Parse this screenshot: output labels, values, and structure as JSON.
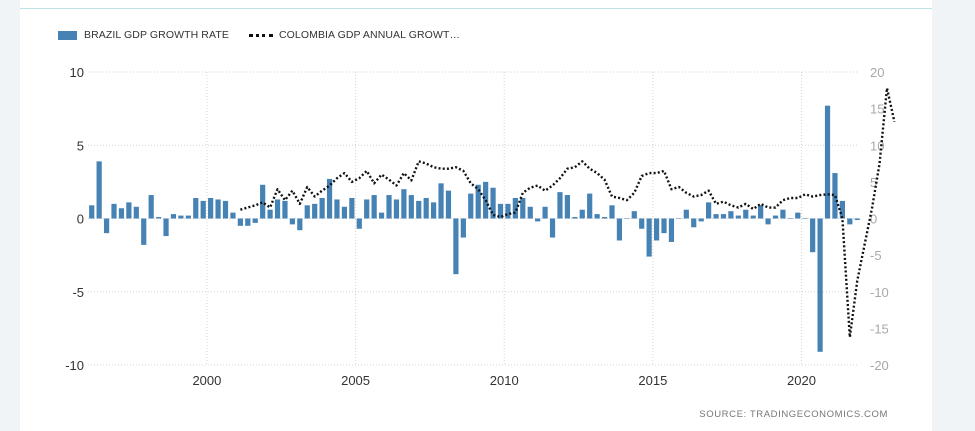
{
  "legend": {
    "brazil": "BRAZIL GDP GROWTH RATE",
    "colombia": "COLOMBIA GDP ANNUAL GROWT…"
  },
  "source": "SOURCE:  TRADINGECONOMICS.COM",
  "chart_data": {
    "type": "bar",
    "x_range": [
      1996.0,
      2021.9
    ],
    "xticks": [
      2000,
      2005,
      2010,
      2015,
      2020
    ],
    "grid": true,
    "legend_position": "top-left",
    "left_axis": {
      "ylim": [
        -10,
        10
      ],
      "ticks": [
        10,
        5,
        0,
        -5,
        -10
      ]
    },
    "right_axis": {
      "ylim": [
        -20,
        20
      ],
      "ticks": [
        20,
        15,
        10,
        5,
        0,
        -5,
        -10,
        -15,
        -20
      ]
    },
    "colors": {
      "brazil": "#4682b4",
      "colombia": "#111111"
    },
    "series": [
      {
        "name": "BRAZIL GDP GROWTH RATE",
        "type": "bar",
        "axis": "left",
        "start": 1996.25,
        "step": 0.25,
        "values": [
          0.9,
          3.9,
          -1.0,
          1.0,
          0.7,
          1.1,
          0.8,
          -1.8,
          1.6,
          0.1,
          -1.2,
          0.3,
          0.2,
          0.2,
          1.4,
          1.2,
          1.4,
          1.3,
          1.2,
          0.4,
          -0.5,
          -0.5,
          -0.3,
          2.3,
          0.6,
          1.3,
          1.2,
          -0.4,
          -0.8,
          0.9,
          1.0,
          1.4,
          2.7,
          1.3,
          0.8,
          1.4,
          -0.7,
          1.3,
          1.6,
          0.4,
          1.6,
          1.3,
          2.0,
          1.6,
          1.2,
          1.4,
          1.1,
          2.4,
          1.9,
          -3.8,
          -1.3,
          1.7,
          2.3,
          2.5,
          2.1,
          1.0,
          1.0,
          1.4,
          1.4,
          0.8,
          -0.2,
          0.8,
          -1.3,
          1.8,
          1.6,
          0.1,
          0.6,
          1.7,
          0.3,
          0.1,
          0.9,
          -1.5,
          0.0,
          0.5,
          -0.7,
          -2.6,
          -1.5,
          -1.0,
          -1.6,
          0.0,
          0.6,
          -0.6,
          -0.2,
          1.1,
          0.3,
          0.3,
          0.5,
          0.2,
          0.6,
          0.2,
          0.9,
          -0.4,
          0.2,
          0.6,
          0.0,
          0.4,
          0.0,
          -2.3,
          -9.1,
          7.7,
          3.1,
          1.2,
          -0.4,
          -0.1
        ]
      },
      {
        "name": "COLOMBIA GDP ANNUAL GROWT…",
        "type": "line",
        "axis": "right",
        "start": 2001.25,
        "step": 0.25,
        "values": [
          1.2,
          1.5,
          1.8,
          2.2,
          1.5,
          4.0,
          2.5,
          3.8,
          2.0,
          4.3,
          3.0,
          3.8,
          4.5,
          5.5,
          6.2,
          5.0,
          5.5,
          6.5,
          4.8,
          6.0,
          5.3,
          4.5,
          6.2,
          5.2,
          7.8,
          7.5,
          7.0,
          6.8,
          6.8,
          7.0,
          6.5,
          4.8,
          4.0,
          2.5,
          0.5,
          0.2,
          0.6,
          0.8,
          3.5,
          4.2,
          4.5,
          3.8,
          4.5,
          5.5,
          6.8,
          7.0,
          7.8,
          6.8,
          6.2,
          5.3,
          3.0,
          2.8,
          2.5,
          3.5,
          5.8,
          6.2,
          6.2,
          6.5,
          4.0,
          4.3,
          3.5,
          3.0,
          3.2,
          3.8,
          2.0,
          2.3,
          1.8,
          1.5,
          2.0,
          1.3,
          2.0,
          1.5,
          1.5,
          2.5,
          2.8,
          2.8,
          3.3,
          3.0,
          3.2,
          3.3,
          3.2,
          0.0,
          -16.2,
          -8.5,
          -3.5,
          1.5,
          7.5,
          17.8,
          13.2
        ]
      }
    ]
  }
}
